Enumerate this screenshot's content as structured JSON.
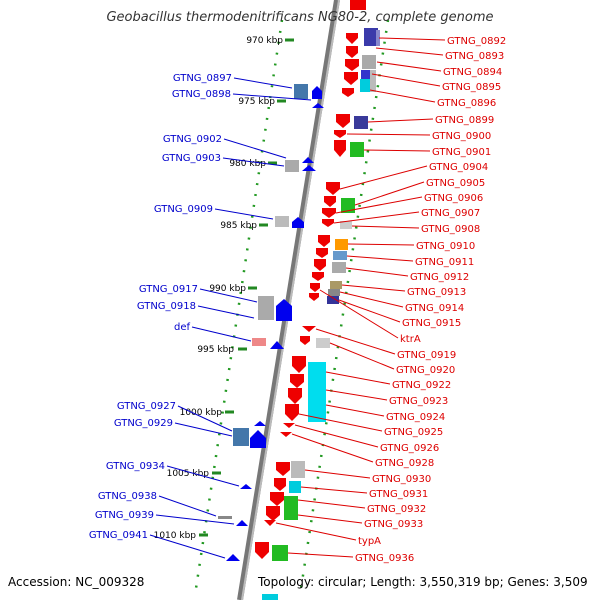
{
  "title": "Geobacillus thermodenitrificans NG80-2, complete genome",
  "footer": {
    "accession": "Accession: NC_009328",
    "summary": "Topology: circular; Length: 3,550,319 bp; Genes: 3,509"
  },
  "ticks": [
    "970 kbp",
    "975 kbp",
    "980 kbp",
    "985 kbp",
    "990 kbp",
    "995 kbp",
    "1000 kbp",
    "1005 kbp",
    "1010 kbp"
  ],
  "left_labels": [
    "GTNG_0897",
    "GTNG_0898",
    "GTNG_0902",
    "GTNG_0903",
    "GTNG_0909",
    "GTNG_0917",
    "GTNG_0918",
    "def",
    "GTNG_0927",
    "GTNG_0929",
    "GTNG_0934",
    "GTNG_0938",
    "GTNG_0939",
    "GTNG_0941"
  ],
  "right_labels": [
    "GTNG_0892",
    "GTNG_0893",
    "GTNG_0894",
    "GTNG_0895",
    "GTNG_0896",
    "GTNG_0899",
    "GTNG_0900",
    "GTNG_0901",
    "GTNG_0904",
    "GTNG_0905",
    "GTNG_0906",
    "GTNG_0907",
    "GTNG_0908",
    "GTNG_0910",
    "GTNG_0911",
    "GTNG_0912",
    "GTNG_0913",
    "GTNG_0914",
    "GTNG_0915",
    "ktrA",
    "GTNG_0919",
    "GTNG_0920",
    "GTNG_0922",
    "GTNG_0923",
    "GTNG_0924",
    "GTNG_0925",
    "GTNG_0926",
    "GTNG_0928",
    "GTNG_0930",
    "GTNG_0931",
    "GTNG_0932",
    "GTNG_0933",
    "typA",
    "GTNG_0936"
  ],
  "colors": {
    "left_label": "#0000cc",
    "right_label": "#dd0000",
    "forward_gene": "#0000ee",
    "reverse_gene": "#ee0000",
    "backbone": "#888888",
    "tick": "#228822"
  }
}
